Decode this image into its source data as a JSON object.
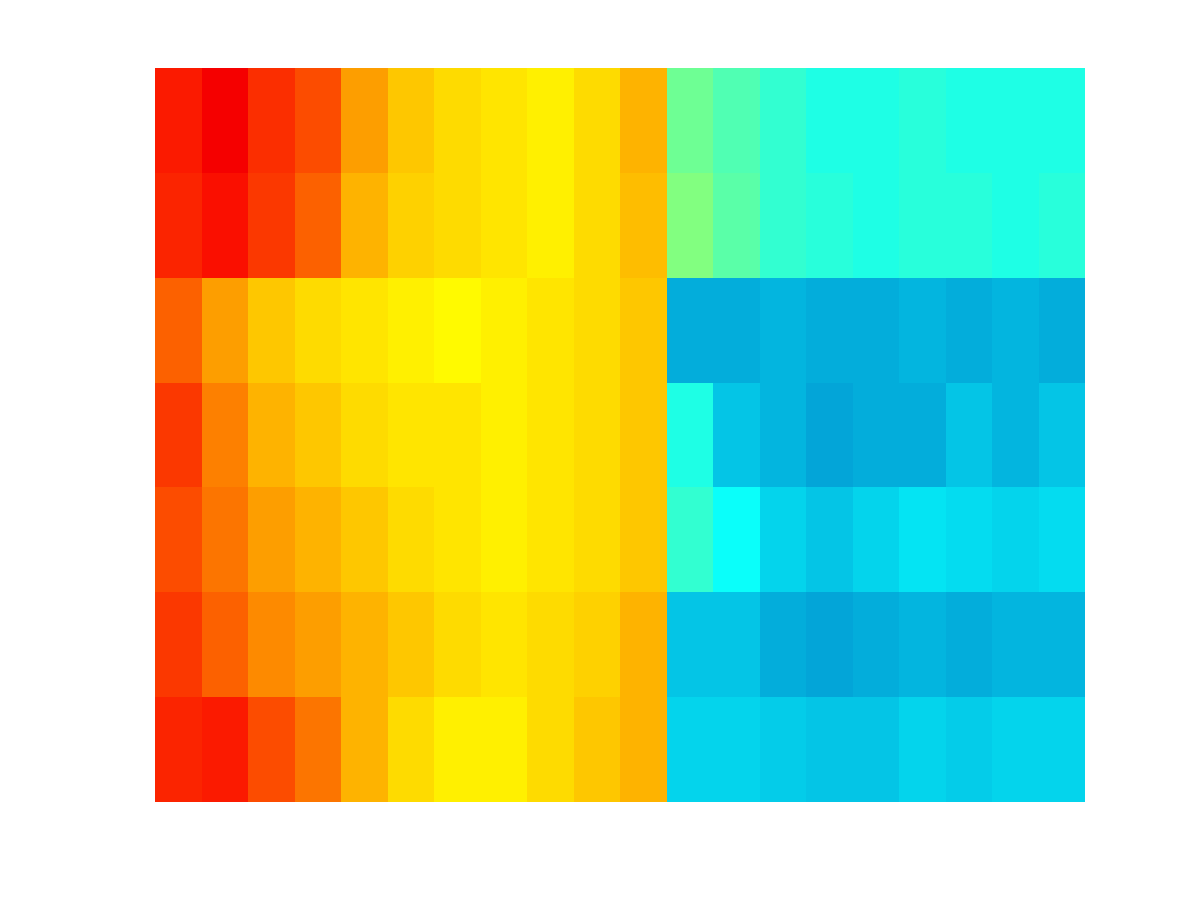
{
  "chart_data": {
    "type": "heatmap",
    "color": "jet",
    "zlim": [
      0,
      1
    ],
    "tick_labels": false,
    "grid": false,
    "cells": [
      [
        0.85,
        0.88,
        0.83,
        0.8,
        0.72,
        0.68,
        0.66,
        0.65,
        0.64,
        0.66,
        0.7,
        0.48,
        0.45,
        0.42,
        0.4,
        0.4,
        0.41,
        0.4,
        0.4,
        0.4
      ],
      [
        0.84,
        0.86,
        0.82,
        0.78,
        0.7,
        0.67,
        0.66,
        0.65,
        0.64,
        0.66,
        0.69,
        0.5,
        0.46,
        0.42,
        0.41,
        0.4,
        0.41,
        0.41,
        0.4,
        0.41
      ],
      [
        0.78,
        0.72,
        0.68,
        0.66,
        0.65,
        0.64,
        0.63,
        0.64,
        0.65,
        0.66,
        0.68,
        0.27,
        0.27,
        0.28,
        0.27,
        0.27,
        0.28,
        0.27,
        0.28,
        0.27
      ],
      [
        0.82,
        0.75,
        0.7,
        0.68,
        0.66,
        0.65,
        0.65,
        0.64,
        0.65,
        0.66,
        0.68,
        0.4,
        0.3,
        0.28,
        0.26,
        0.27,
        0.27,
        0.3,
        0.28,
        0.3
      ],
      [
        0.8,
        0.76,
        0.72,
        0.7,
        0.68,
        0.66,
        0.65,
        0.64,
        0.65,
        0.66,
        0.68,
        0.42,
        0.38,
        0.32,
        0.3,
        0.32,
        0.34,
        0.33,
        0.32,
        0.33
      ],
      [
        0.82,
        0.78,
        0.74,
        0.72,
        0.7,
        0.68,
        0.66,
        0.65,
        0.66,
        0.67,
        0.7,
        0.3,
        0.3,
        0.27,
        0.26,
        0.27,
        0.28,
        0.27,
        0.28,
        0.28
      ],
      [
        0.84,
        0.85,
        0.8,
        0.76,
        0.7,
        0.66,
        0.64,
        0.64,
        0.66,
        0.68,
        0.7,
        0.32,
        0.32,
        0.31,
        0.3,
        0.3,
        0.32,
        0.31,
        0.32,
        0.32
      ]
    ]
  }
}
